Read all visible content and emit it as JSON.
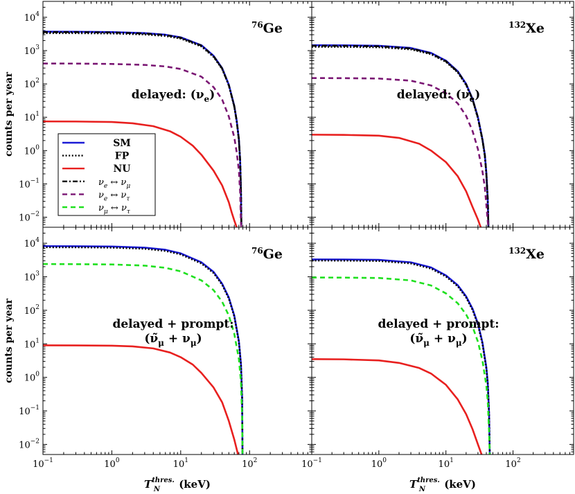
{
  "chart_data": [
    {
      "type": "line",
      "panel": "top-left",
      "isotope_mass": "76",
      "isotope_symbol": "Ge",
      "annotation_lines": [
        "delayed: (ν",
        "e",
        ")"
      ],
      "xlim": [
        0.1,
        800
      ],
      "ylim": [
        0.005,
        30000
      ],
      "xscale": "log",
      "yscale": "log",
      "series": [
        {
          "name": "SM",
          "color": "#1a1ad6",
          "style": "solid",
          "x": [
            0.1,
            0.3,
            1,
            3,
            6,
            10,
            20,
            30,
            40,
            50,
            60,
            65,
            70,
            73,
            75,
            76
          ],
          "y": [
            3700,
            3680,
            3600,
            3350,
            3000,
            2500,
            1450,
            700,
            300,
            95,
            22,
            8,
            2.2,
            0.5,
            0.06,
            0.006
          ]
        },
        {
          "name": "FP",
          "color": "#000000",
          "style": "dotted",
          "x": [
            0.1,
            0.3,
            1,
            3,
            6,
            10,
            20,
            30,
            40,
            50,
            60,
            65,
            70,
            73,
            75,
            76
          ],
          "y": [
            3350,
            3340,
            3270,
            3050,
            2750,
            2300,
            1330,
            650,
            280,
            90,
            21,
            7.6,
            2.1,
            0.48,
            0.058,
            0.006
          ]
        },
        {
          "name": "NU",
          "color": "#e8201f",
          "style": "solid",
          "x": [
            0.1,
            0.3,
            1,
            2,
            4,
            7,
            10,
            15,
            20,
            30,
            40,
            50,
            55,
            60,
            65
          ],
          "y": [
            7.5,
            7.45,
            7.2,
            6.6,
            5.4,
            3.8,
            2.6,
            1.4,
            0.75,
            0.25,
            0.09,
            0.028,
            0.014,
            0.008,
            0.005
          ]
        },
        {
          "name": "ν_e ↔ ν_μ",
          "color": "#000000",
          "style": "dashdot",
          "x": [
            0.1,
            0.3,
            1,
            3,
            6,
            10,
            20,
            30,
            40,
            50,
            60,
            65,
            70,
            73,
            75,
            76
          ],
          "y": [
            3600,
            3590,
            3500,
            3260,
            2920,
            2440,
            1410,
            680,
            290,
            92,
            21.5,
            7.8,
            2.15,
            0.49,
            0.059,
            0.006
          ]
        },
        {
          "name": "ν_e ↔ ν_τ",
          "color": "#7a1673",
          "style": "dashed",
          "x": [
            0.1,
            0.3,
            1,
            3,
            6,
            10,
            20,
            30,
            40,
            50,
            60,
            65,
            70,
            73,
            75,
            76
          ],
          "y": [
            410,
            408,
            398,
            372,
            335,
            280,
            165,
            80,
            34,
            10.5,
            2.5,
            0.9,
            0.25,
            0.055,
            0.0068,
            0.005
          ]
        }
      ]
    },
    {
      "type": "line",
      "panel": "top-right",
      "isotope_mass": "132",
      "isotope_symbol": "Xe",
      "annotation_lines": [
        "delayed: (ν",
        "e",
        ")"
      ],
      "xlim": [
        0.1,
        800
      ],
      "ylim": [
        0.005,
        30000
      ],
      "xscale": "log",
      "yscale": "log",
      "series": [
        {
          "name": "SM",
          "color": "#1a1ad6",
          "style": "solid",
          "x": [
            0.1,
            0.3,
            1,
            3,
            6,
            10,
            15,
            20,
            25,
            30,
            35,
            38,
            40,
            42,
            43
          ],
          "y": [
            1450,
            1440,
            1400,
            1200,
            850,
            500,
            240,
            100,
            35,
            10,
            2.2,
            0.75,
            0.22,
            0.035,
            0.005
          ]
        },
        {
          "name": "FP",
          "color": "#000000",
          "style": "dotted",
          "x": [
            0.1,
            0.3,
            1,
            3,
            6,
            10,
            15,
            20,
            25,
            30,
            35,
            38,
            40,
            42,
            43
          ],
          "y": [
            1300,
            1295,
            1260,
            1090,
            780,
            460,
            222,
            93,
            32.5,
            9.3,
            2.05,
            0.7,
            0.2,
            0.033,
            0.005
          ]
        },
        {
          "name": "NU",
          "color": "#e8201f",
          "style": "solid",
          "x": [
            0.1,
            0.3,
            1,
            2,
            4,
            6,
            10,
            15,
            20,
            25,
            30,
            33
          ],
          "y": [
            3.0,
            2.95,
            2.8,
            2.4,
            1.6,
            1.0,
            0.45,
            0.17,
            0.06,
            0.02,
            0.0085,
            0.005
          ]
        },
        {
          "name": "ν_e ↔ ν_μ",
          "color": "#000000",
          "style": "dashdot",
          "x": [
            0.1,
            0.3,
            1,
            3,
            6,
            10,
            15,
            20,
            25,
            30,
            35,
            38,
            40,
            42,
            43
          ],
          "y": [
            1400,
            1390,
            1350,
            1160,
            820,
            480,
            232,
            97,
            34,
            9.7,
            2.13,
            0.73,
            0.21,
            0.034,
            0.005
          ]
        },
        {
          "name": "ν_e ↔ ν_τ",
          "color": "#7a1673",
          "style": "dashed",
          "x": [
            0.1,
            0.3,
            1,
            3,
            6,
            10,
            15,
            20,
            25,
            30,
            35,
            38,
            40,
            42,
            43
          ],
          "y": [
            150,
            149,
            145,
            125,
            90,
            53,
            26,
            11,
            3.8,
            1.1,
            0.24,
            0.08,
            0.024,
            0.0075,
            0.005
          ]
        }
      ]
    },
    {
      "type": "line",
      "panel": "bottom-left",
      "isotope_mass": "76",
      "isotope_symbol": "Ge",
      "annotation_lines": [
        "delayed + prompt:",
        "(ν̃",
        "μ",
        " + ν",
        "μ",
        ")"
      ],
      "xlim": [
        0.1,
        800
      ],
      "ylim": [
        0.005,
        30000
      ],
      "xscale": "log",
      "yscale": "log",
      "series": [
        {
          "name": "SM",
          "color": "#1a1ad6",
          "style": "solid",
          "x": [
            0.1,
            0.3,
            1,
            3,
            6,
            10,
            20,
            30,
            40,
            50,
            60,
            70,
            75,
            78,
            79
          ],
          "y": [
            8200,
            8150,
            8000,
            7400,
            6400,
            5000,
            2700,
            1400,
            620,
            240,
            70,
            12,
            2.5,
            0.25,
            0.005
          ]
        },
        {
          "name": "FP",
          "color": "#000000",
          "style": "dotted",
          "x": [
            0.1,
            0.3,
            1,
            3,
            6,
            10,
            20,
            30,
            40,
            50,
            60,
            70,
            75,
            78,
            79
          ],
          "y": [
            7600,
            7560,
            7400,
            6850,
            5900,
            4650,
            2500,
            1300,
            580,
            225,
            66,
            11.3,
            2.35,
            0.24,
            0.005
          ]
        },
        {
          "name": "NU",
          "color": "#e8201f",
          "style": "solid",
          "x": [
            0.1,
            0.3,
            1,
            2,
            4,
            7,
            10,
            15,
            20,
            30,
            40,
            50,
            60,
            68
          ],
          "y": [
            9.0,
            8.95,
            8.8,
            8.4,
            7.3,
            5.5,
            4.0,
            2.4,
            1.35,
            0.5,
            0.18,
            0.05,
            0.014,
            0.005
          ]
        },
        {
          "name": "ν_μ ↔ ν_τ",
          "color": "#1fe01f",
          "style": "dashed",
          "x": [
            0.1,
            0.3,
            1,
            3,
            6,
            10,
            20,
            30,
            40,
            50,
            60,
            70,
            75,
            78,
            79
          ],
          "y": [
            2400,
            2380,
            2330,
            2150,
            1850,
            1450,
            780,
            400,
            180,
            70,
            20,
            3.5,
            0.75,
            0.075,
            0.005
          ]
        }
      ]
    },
    {
      "type": "line",
      "panel": "bottom-right",
      "isotope_mass": "132",
      "isotope_symbol": "Xe",
      "annotation_lines": [
        "delayed + prompt:",
        "(ν̃",
        "μ",
        " + ν",
        "μ",
        ")"
      ],
      "xlim": [
        0.1,
        800
      ],
      "ylim": [
        0.005,
        30000
      ],
      "xscale": "log",
      "yscale": "log",
      "series": [
        {
          "name": "SM",
          "color": "#1a1ad6",
          "style": "solid",
          "x": [
            0.1,
            0.3,
            1,
            3,
            6,
            10,
            15,
            20,
            25,
            30,
            35,
            40,
            42,
            44,
            45
          ],
          "y": [
            3300,
            3280,
            3200,
            2700,
            1900,
            1100,
            560,
            260,
            110,
            40,
            11,
            2.0,
            0.7,
            0.08,
            0.005
          ]
        },
        {
          "name": "FP",
          "color": "#000000",
          "style": "dotted",
          "x": [
            0.1,
            0.3,
            1,
            3,
            6,
            10,
            15,
            20,
            25,
            30,
            35,
            40,
            42,
            44,
            45
          ],
          "y": [
            3050,
            3030,
            2960,
            2500,
            1760,
            1020,
            520,
            241,
            102,
            37,
            10.2,
            1.85,
            0.65,
            0.075,
            0.005
          ]
        },
        {
          "name": "NU",
          "color": "#e8201f",
          "style": "solid",
          "x": [
            0.1,
            0.3,
            1,
            2,
            4,
            6,
            10,
            15,
            20,
            25,
            30,
            34
          ],
          "y": [
            3.5,
            3.45,
            3.2,
            2.7,
            1.9,
            1.3,
            0.6,
            0.22,
            0.08,
            0.028,
            0.01,
            0.005
          ]
        },
        {
          "name": "ν_μ ↔ ν_τ",
          "color": "#1fe01f",
          "style": "dashed",
          "x": [
            0.1,
            0.3,
            1,
            3,
            6,
            10,
            15,
            20,
            25,
            30,
            35,
            40,
            42,
            44,
            45
          ],
          "y": [
            950,
            945,
            920,
            780,
            550,
            320,
            162,
            75,
            32,
            11.5,
            3.2,
            0.58,
            0.2,
            0.023,
            0.005
          ]
        }
      ]
    }
  ],
  "axes": {
    "ylabel": "counts per year",
    "xlabel_main": "T",
    "xlabel_sub": "N",
    "xlabel_sup": "thres.",
    "xlabel_unit": "(keV)",
    "x_ticks": [
      {
        "value": 0.1,
        "base": "10",
        "exp": "−1"
      },
      {
        "value": 1,
        "base": "10",
        "exp": "0"
      },
      {
        "value": 10,
        "base": "10",
        "exp": "1"
      },
      {
        "value": 100,
        "base": "10",
        "exp": "2"
      }
    ],
    "y_ticks": [
      {
        "value": 10000,
        "base": "10",
        "exp": "4"
      },
      {
        "value": 1000,
        "base": "10",
        "exp": "3"
      },
      {
        "value": 100,
        "base": "10",
        "exp": "2"
      },
      {
        "value": 10,
        "base": "10",
        "exp": "1"
      },
      {
        "value": 1,
        "base": "10",
        "exp": "0"
      },
      {
        "value": 0.1,
        "base": "10",
        "exp": "−1"
      },
      {
        "value": 0.01,
        "base": "10",
        "exp": "−2"
      }
    ]
  },
  "legend": {
    "placement": "top-left panel, lower-left",
    "entries": [
      {
        "label": "SM",
        "style": "solid",
        "color": "#1a1ad6",
        "bold": true
      },
      {
        "label": "FP",
        "style": "dotted",
        "color": "#000000",
        "bold": true
      },
      {
        "label": "NU",
        "style": "solid",
        "color": "#e8201f",
        "bold": true
      },
      {
        "label": "νe ↔ νμ",
        "base1": "ν",
        "sub1": "e",
        "base2": "ν",
        "sub2": "μ",
        "style": "dashdot",
        "color": "#000000",
        "bold": false
      },
      {
        "label": "νe ↔ ντ",
        "base1": "ν",
        "sub1": "e",
        "base2": "ν",
        "sub2": "τ",
        "style": "dashed",
        "color": "#7a1673",
        "bold": false
      },
      {
        "label": "νμ ↔ ντ",
        "base1": "ν",
        "sub1": "μ",
        "base2": "ν",
        "sub2": "τ",
        "style": "dashed",
        "color": "#1fe01f",
        "bold": false
      }
    ]
  }
}
